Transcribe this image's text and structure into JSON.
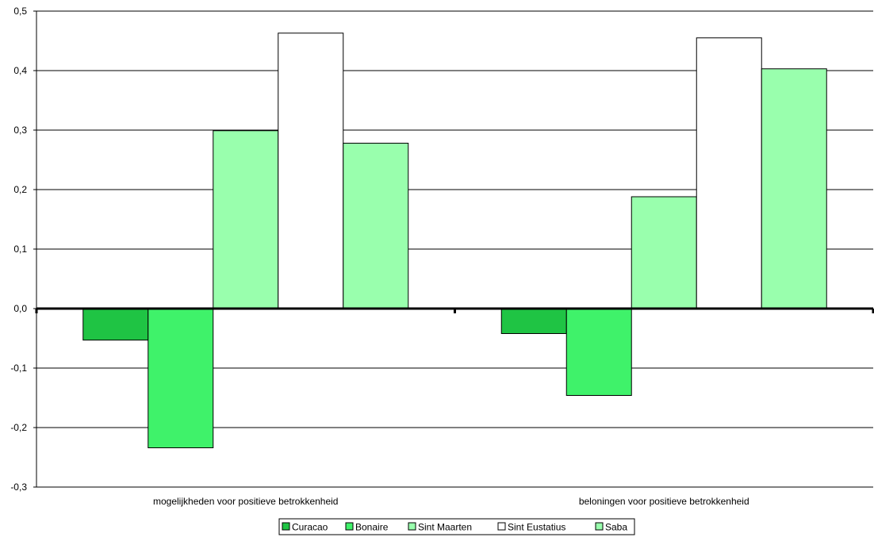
{
  "chart_data": {
    "type": "bar",
    "title": "",
    "xlabel": "",
    "ylabel": "",
    "ylim": [
      -0.3,
      0.5
    ],
    "y_ticks": [
      "-0,3",
      "-0,2",
      "-0,1",
      "0,0",
      "0,1",
      "0,2",
      "0,3",
      "0,4",
      "0,5"
    ],
    "grid": true,
    "legend_position": "bottom",
    "categories": [
      "mogelijkheden voor positieve betrokkenheid",
      "beloningen voor positieve betrokkenheid"
    ],
    "series": [
      {
        "name": "Curacao",
        "color": "#1fc444",
        "values": [
          -0.053,
          -0.042
        ]
      },
      {
        "name": "Bonaire",
        "color": "#3ff26a",
        "values": [
          -0.234,
          -0.146
        ]
      },
      {
        "name": "Sint Maarten",
        "color": "#99ffad",
        "values": [
          0.299,
          0.188
        ]
      },
      {
        "name": "Sint Eustatius",
        "color": "#ffffff",
        "values": [
          0.463,
          0.455
        ]
      },
      {
        "name": "Saba",
        "color": "#99ffad",
        "values": [
          0.278,
          0.403
        ]
      }
    ]
  }
}
